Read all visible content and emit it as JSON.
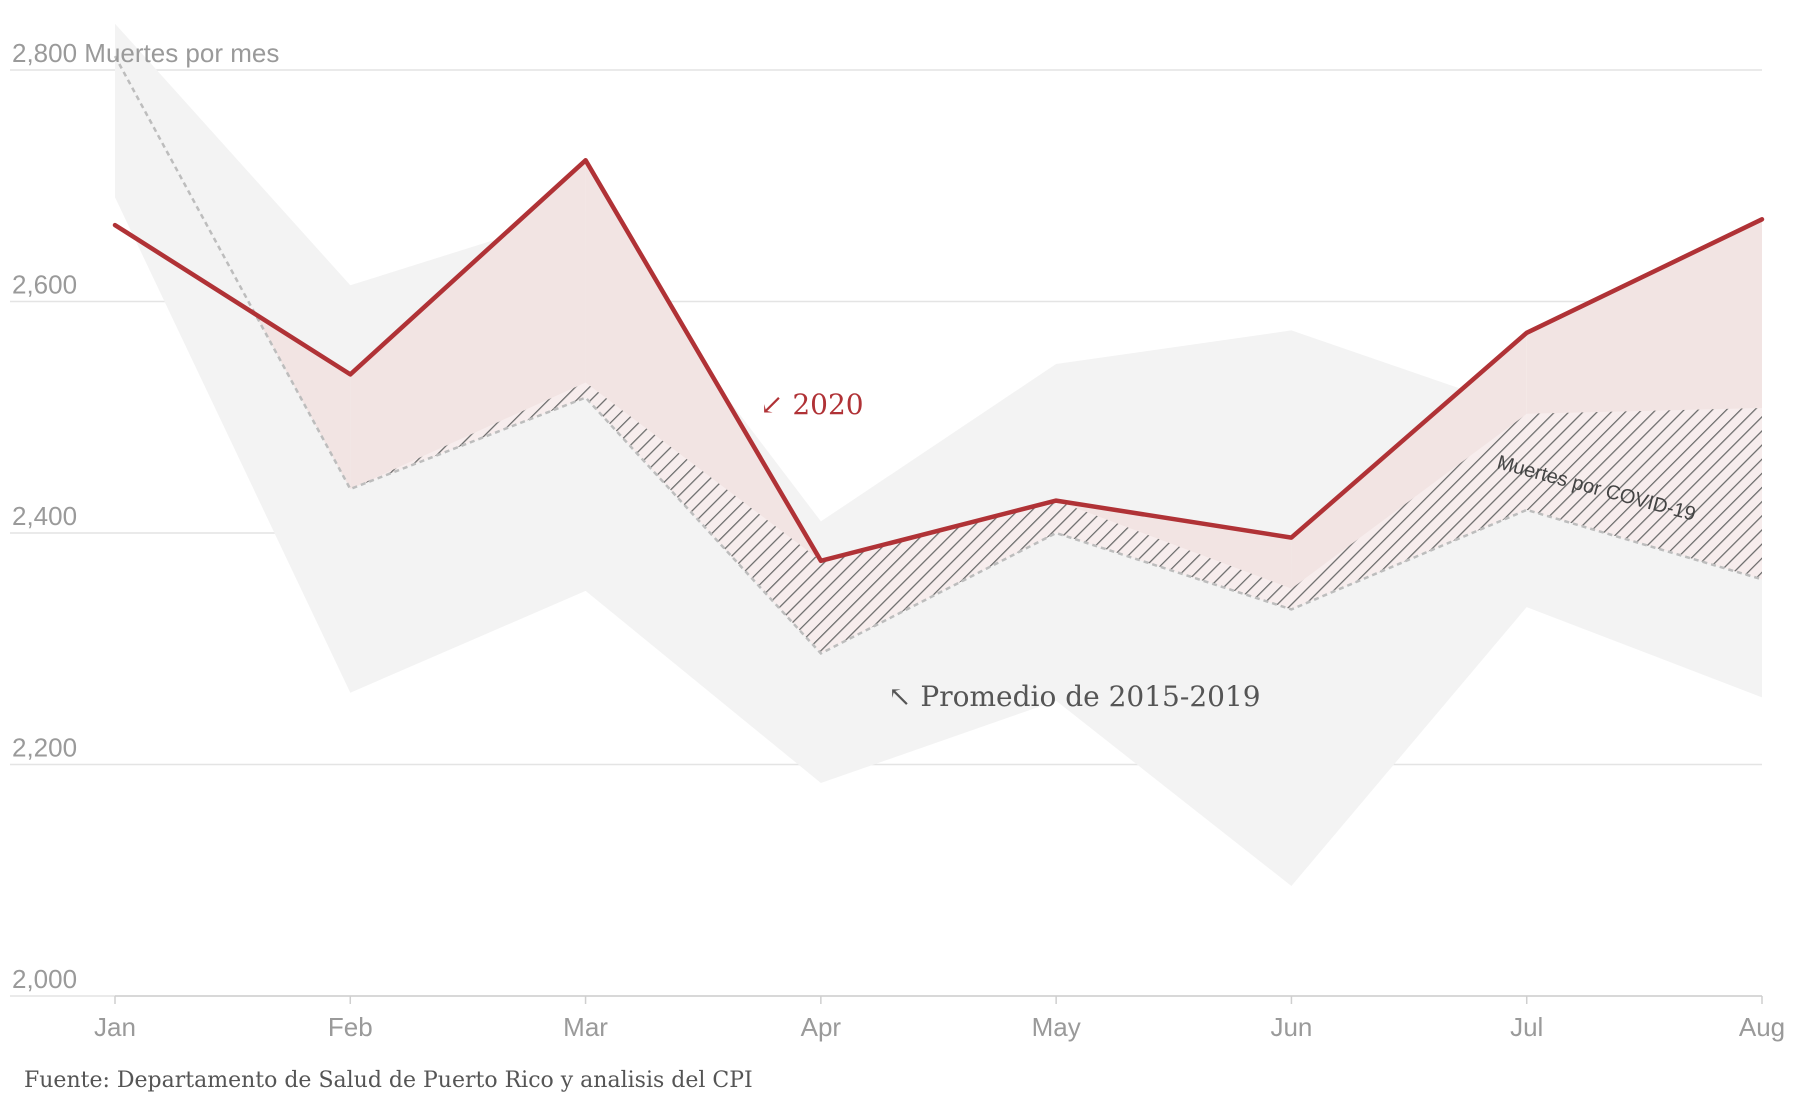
{
  "chart_data": {
    "type": "line",
    "ylabel_unit": "Muertes por mes",
    "ylim": [
      2000,
      2840
    ],
    "yticks": [
      2000,
      2200,
      2400,
      2600,
      2800
    ],
    "ytick_labels": [
      "2,000",
      "2,200",
      "2,400",
      "2,600",
      "2,800"
    ],
    "categories": [
      "Jan",
      "Feb",
      "Mar",
      "Apr",
      "May",
      "Jun",
      "Jul",
      "Aug"
    ],
    "series": [
      {
        "name": "2020",
        "values": [
          2666,
          2537,
          2722,
          2376,
          2428,
          2396,
          2573,
          2671
        ]
      },
      {
        "name": "Promedio de 2015-2019",
        "values": [
          2812,
          2438,
          2517,
          2296,
          2400,
          2334,
          2420,
          2360
        ]
      }
    ],
    "range_band": {
      "upper": [
        2840,
        2614,
        2678,
        2410,
        2546,
        2575,
        2505,
        2505
      ],
      "lower": [
        2690,
        2262,
        2350,
        2184,
        2255,
        2095,
        2336,
        2258
      ]
    },
    "covid_band": {
      "upper": [
        null,
        null,
        null,
        2376,
        2428,
        2352,
        2503,
        2508
      ]
    },
    "annotations": {
      "line_2020": "↙ 2020",
      "average": "↖ Promedio de 2015-2019",
      "covid": "Muertes por COVID-19"
    },
    "grid": true,
    "colors": {
      "line_2020": "#b03236",
      "excess_fill": "#f2e4e3",
      "band": "#f3f3f3",
      "average": "#bdbdbd",
      "hatch": "#666666"
    }
  },
  "source": "Fuente: Departamento de Salud de Puerto Rico y analisis del CPI"
}
